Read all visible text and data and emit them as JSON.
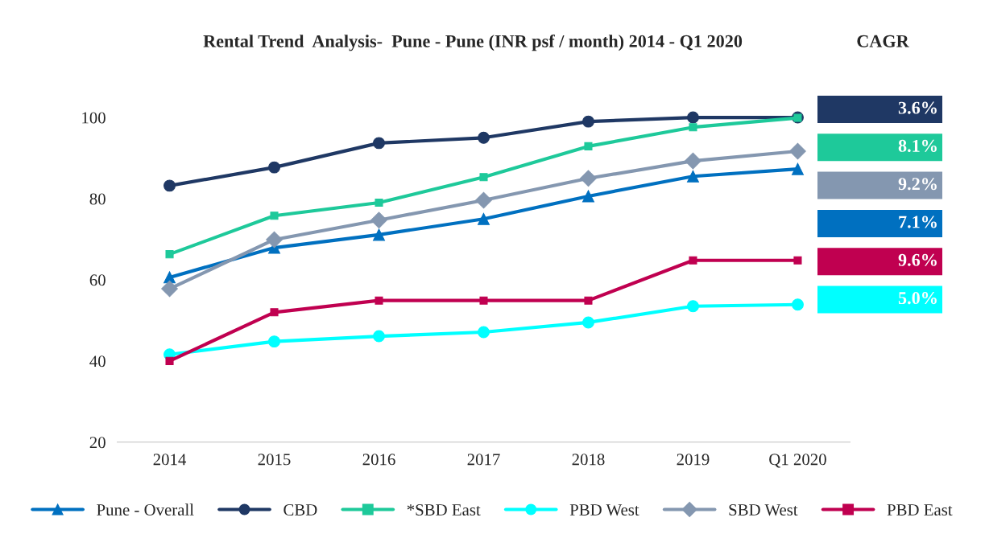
{
  "chart_data": {
    "type": "line",
    "title": "Rental Trend  Analysis-  Pune - Pune (INR psf / month) 2014 - Q1 2020",
    "categories": [
      "2014",
      "2015",
      "2016",
      "2017",
      "2018",
      "2019",
      "Q1 2020"
    ],
    "series": [
      {
        "name": "Pune - Overall",
        "color": "#0070c0",
        "marker": "triangle",
        "values": [
          60.6,
          67.9,
          71.1,
          75.0,
          80.6,
          85.5,
          87.3
        ]
      },
      {
        "name": "CBD",
        "color": "#1f3864",
        "marker": "circle",
        "values": [
          83.2,
          87.7,
          93.7,
          95.0,
          99.0,
          100.0,
          100.0
        ]
      },
      {
        "name": "*SBD East",
        "color": "#1ec99a",
        "marker": "square",
        "values": [
          66.3,
          75.8,
          79.0,
          85.3,
          92.9,
          97.6,
          99.9
        ]
      },
      {
        "name": "PBD West",
        "color": "#00ffff",
        "marker": "circle",
        "values": [
          41.6,
          44.8,
          46.1,
          47.1,
          49.5,
          53.5,
          53.9
        ]
      },
      {
        "name": "SBD West",
        "color": "#8497b0",
        "marker": "diamond",
        "values": [
          57.8,
          69.9,
          74.7,
          79.6,
          85.0,
          89.3,
          91.7
        ]
      },
      {
        "name": "PBD East",
        "color": "#c00050",
        "marker": "square",
        "values": [
          40.0,
          52.0,
          54.9,
          54.9,
          54.9,
          64.8,
          64.8
        ]
      }
    ],
    "annotations": [
      "CAGR",
      "3.6%",
      "8.1%",
      "9.2%",
      "7.1%",
      "9.6%",
      "5.0%"
    ],
    "ylim": [
      20,
      100
    ],
    "yticks": [
      20,
      40,
      60,
      80,
      100
    ],
    "grid": false,
    "legend": "bottom",
    "line_style": "solid"
  }
}
